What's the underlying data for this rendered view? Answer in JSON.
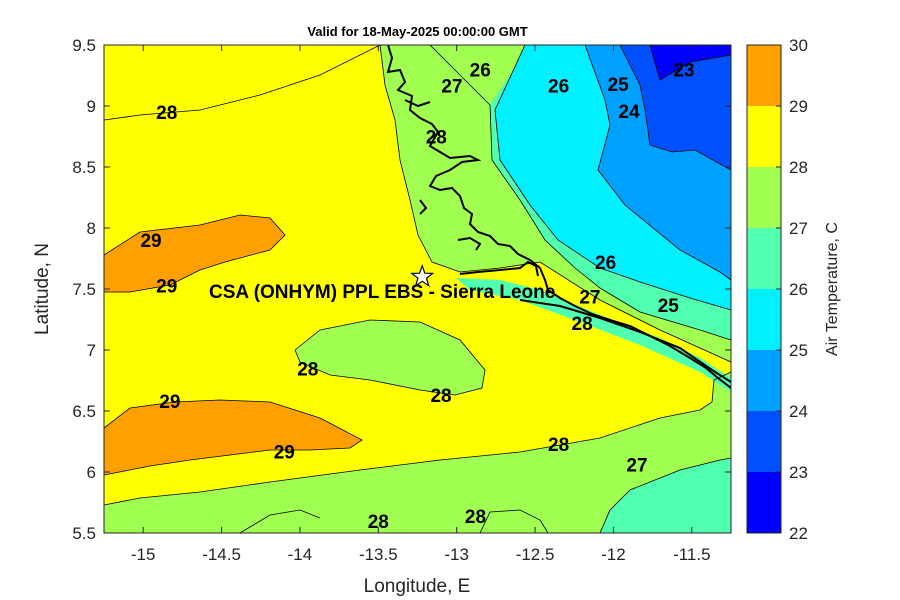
{
  "title": "Valid for 18-May-2025 00:00:00 GMT",
  "xlabel": "Longitude, E",
  "ylabel": "Latitude, N",
  "colorbar_label": "Air Temperature, C",
  "annotation": "CSA (ONHYM) PPL EBS  - Sierra Leone",
  "marker_icon": "star-icon",
  "x_ticks": [
    "-15",
    "-14.5",
    "-14",
    "-13.5",
    "-13",
    "-12.5",
    "-12",
    "-11.5"
  ],
  "y_ticks": [
    "9.5",
    "9",
    "8.5",
    "8",
    "7.5",
    "7",
    "6.5",
    "6",
    "5.5"
  ],
  "colorbar_ticks": [
    "30",
    "29",
    "28",
    "27",
    "26",
    "25",
    "24",
    "23",
    "22"
  ],
  "contour_labels": [
    "26",
    "27",
    "28",
    "26",
    "25",
    "23",
    "28",
    "24",
    "29",
    "29",
    "26",
    "25",
    "27",
    "28",
    "28",
    "28",
    "29",
    "29",
    "28",
    "27",
    "28",
    "28"
  ],
  "colors": {
    "22-23": "#0000ff",
    "23-24": "#0050ff",
    "24-25": "#00a0ff",
    "25-26": "#00f0ff",
    "26-27": "#50ffb0",
    "27-28": "#a0ff50",
    "28-29": "#ffff00",
    "29-30": "#ffa000",
    "30-31": "#ff5000"
  },
  "chart_data": {
    "type": "contour map",
    "variable": "Air Temperature, C",
    "valid_time": "18-May-2025 00:00:00 GMT",
    "xlim": [
      -15.25,
      -11.25
    ],
    "ylim": [
      5.5,
      9.5
    ],
    "color_levels": [
      22,
      23,
      24,
      25,
      26,
      27,
      28,
      29,
      30
    ],
    "marker": {
      "lon": -13.22,
      "lat": 7.6,
      "label": "CSA (ONHYM) PPL EBS  - Sierra Leone"
    },
    "contour_labels": [
      {
        "value": 26,
        "lon": -12.85,
        "lat": 9.3
      },
      {
        "value": 27,
        "lon": -13.03,
        "lat": 9.17
      },
      {
        "value": 28,
        "lon": -13.13,
        "lat": 8.75
      },
      {
        "value": 26,
        "lon": -12.35,
        "lat": 9.17
      },
      {
        "value": 25,
        "lon": -11.97,
        "lat": 9.18
      },
      {
        "value": 23,
        "lon": -11.55,
        "lat": 9.3
      },
      {
        "value": 28,
        "lon": -14.85,
        "lat": 8.95
      },
      {
        "value": 24,
        "lon": -11.9,
        "lat": 8.96
      },
      {
        "value": 29,
        "lon": -14.95,
        "lat": 7.9
      },
      {
        "value": 29,
        "lon": -14.85,
        "lat": 7.53
      },
      {
        "value": 26,
        "lon": -12.05,
        "lat": 7.72
      },
      {
        "value": 25,
        "lon": -11.65,
        "lat": 7.37
      },
      {
        "value": 27,
        "lon": -12.15,
        "lat": 7.44
      },
      {
        "value": 28,
        "lon": -12.2,
        "lat": 7.22
      },
      {
        "value": 28,
        "lon": -13.95,
        "lat": 6.85
      },
      {
        "value": 28,
        "lon": -13.1,
        "lat": 6.63
      },
      {
        "value": 29,
        "lon": -14.83,
        "lat": 6.58
      },
      {
        "value": 29,
        "lon": -14.1,
        "lat": 6.17
      },
      {
        "value": 28,
        "lon": -12.35,
        "lat": 6.23
      },
      {
        "value": 27,
        "lon": -11.85,
        "lat": 6.06
      },
      {
        "value": 28,
        "lon": -13.5,
        "lat": 5.6
      },
      {
        "value": 28,
        "lon": -12.88,
        "lat": 5.64
      }
    ]
  }
}
